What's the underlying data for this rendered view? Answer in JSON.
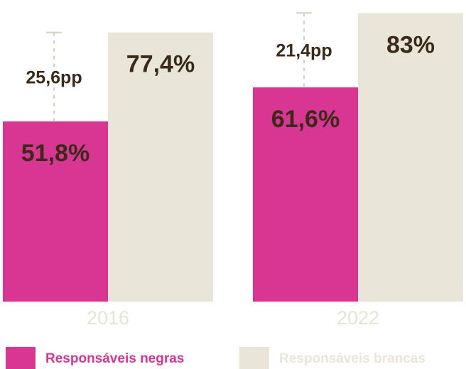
{
  "colors": {
    "negras": "#d93592",
    "brancas": "#e9e5d8",
    "value_text": "#3a2a1a",
    "gap_line": "#d6d0c0"
  },
  "chart_data": {
    "type": "bar",
    "categories": [
      "2016",
      "2022"
    ],
    "series": [
      {
        "name": "Responsáveis negras",
        "values": [
          51.8,
          61.6
        ],
        "labels": [
          "51,8%",
          "61,6%"
        ]
      },
      {
        "name": "Responsáveis brancas",
        "values": [
          77.4,
          83.0
        ],
        "labels": [
          "77,4%",
          "83%"
        ]
      }
    ],
    "gaps": [
      {
        "category": "2016",
        "value": 25.6,
        "label": "25,6pp"
      },
      {
        "category": "2022",
        "value": 21.4,
        "label": "21,4pp"
      }
    ],
    "ylim": [
      0,
      100
    ],
    "grid": false,
    "legend_position": "bottom-left"
  },
  "legend": [
    {
      "label": "Responsáveis negras",
      "color": "#d93592",
      "text_color": "#d93592"
    },
    {
      "label": "Responsáveis brancas",
      "color": "#e9e5d8",
      "text_color": "#e9e5d8"
    }
  ]
}
